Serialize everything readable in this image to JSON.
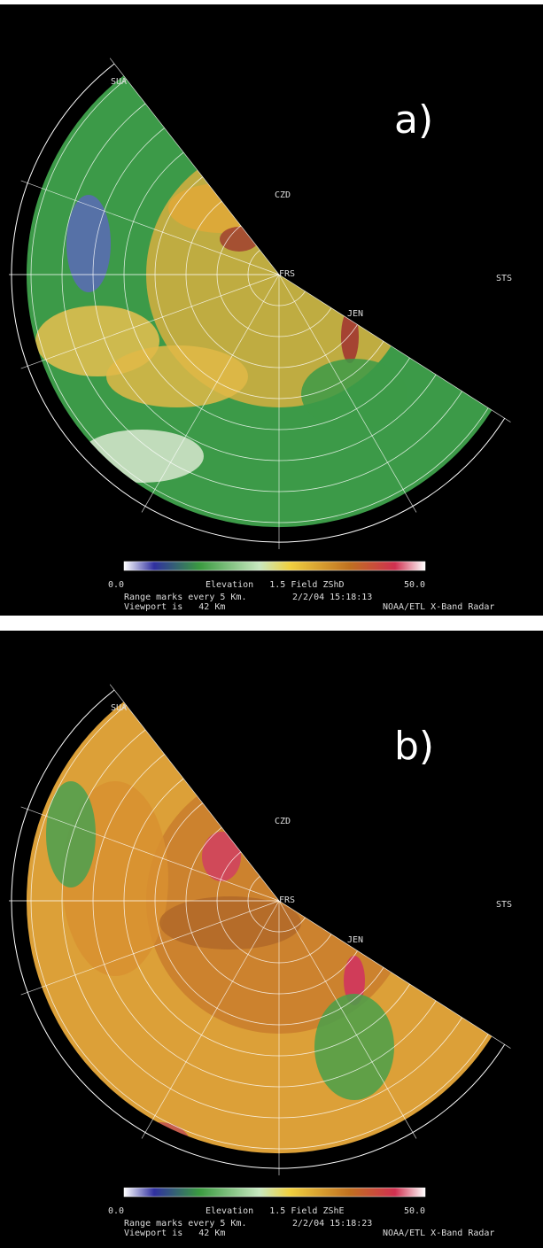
{
  "panels": [
    {
      "label": "a)",
      "stations": [
        "SUA",
        "CZD",
        "FRS",
        "STS",
        "JEN"
      ],
      "colorbar": {
        "min": "0.0",
        "title": "Elevation   1.5 Field ZShD",
        "max": "50.0"
      },
      "footer": {
        "range_marks": "Range marks every 5 Km.",
        "timestamp": "2/2/04 15:18:13",
        "viewport": "Viewport is   42 Km",
        "source": "NOAA/ETL X-Band Radar"
      }
    },
    {
      "label": "b)",
      "stations": [
        "SUA",
        "CZD",
        "FRS",
        "STS",
        "JEN"
      ],
      "colorbar": {
        "min": "0.0",
        "title": "Elevation   1.5 Field ZShE",
        "max": "50.0"
      },
      "footer": {
        "range_marks": "Range marks every 5 Km.",
        "timestamp": "2/2/04 15:18:23",
        "viewport": "Viewport is   42 Km",
        "source": "NOAA/ETL X-Band Radar"
      }
    }
  ]
}
